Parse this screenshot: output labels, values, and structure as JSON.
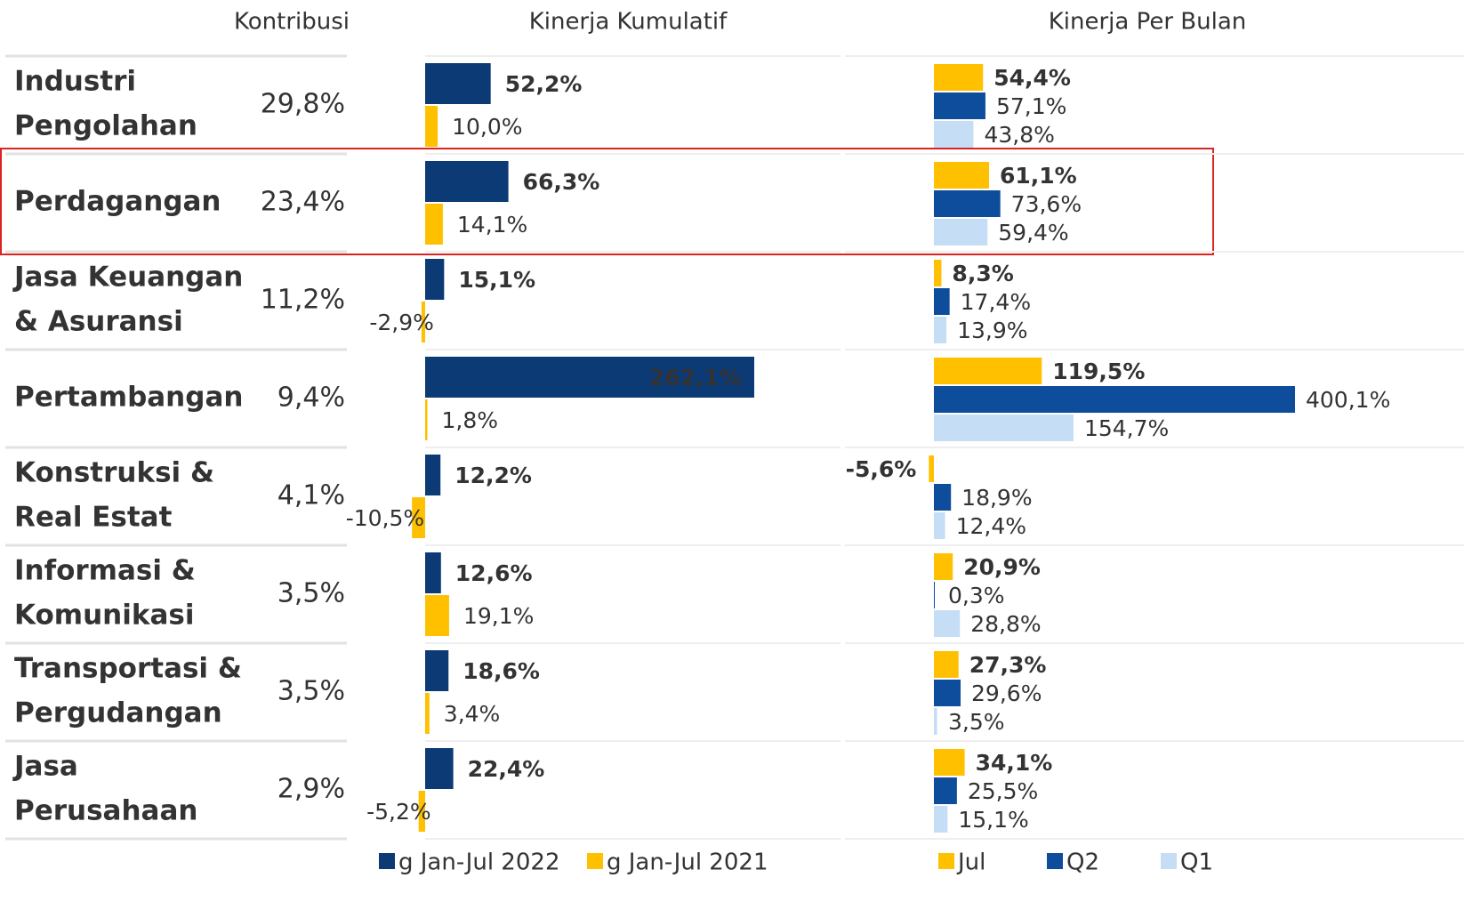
{
  "headers": [
    "Kontribusi",
    "Kinerja Kumulatif",
    "Kinerja Per Bulan"
  ],
  "sectors": [
    [
      "Industri",
      "Pengolahan"
    ],
    [
      "Perdagangan"
    ],
    [
      "Jasa Keuangan",
      "& Asuransi"
    ],
    [
      "Pertambangan"
    ],
    [
      "Konstruksi &",
      "Real Estat"
    ],
    [
      "Informasi &",
      "Komunikasi"
    ],
    [
      "Transportasi &",
      "Pergudangan"
    ],
    [
      "Jasa",
      "Perusahaan"
    ]
  ],
  "contribution": {
    "values": [
      29.8,
      23.4,
      11.2,
      9.4,
      4.1,
      3.5,
      3.5,
      2.9
    ],
    "value_labels": [
      "29,8%",
      "23,4%",
      "11,2%",
      "9,4%",
      "4,1%",
      "3,5%",
      "3,5%",
      "2,9%"
    ]
  },
  "cumulative": {
    "series": [
      {
        "name": "g Jan-Jul 2022",
        "color": "#0b3a75",
        "values": [
          52.2,
          66.3,
          15.1,
          262.1,
          12.2,
          12.6,
          18.6,
          22.4
        ],
        "value_labels": [
          "52,2%",
          "66,3%",
          "15,1%",
          "262,1%",
          "12,2%",
          "12,6%",
          "18,6%",
          "22,4%"
        ]
      },
      {
        "name": "g Jan-Jul 2021",
        "color": "#ffc000",
        "values": [
          10.0,
          14.1,
          -2.9,
          1.8,
          -10.5,
          19.1,
          3.4,
          -5.2
        ],
        "value_labels": [
          "10,0%",
          "14,1%",
          "-2,9%",
          "1,8%",
          "-10,5%",
          "19,1%",
          "3,4%",
          "-5,2%"
        ]
      }
    ]
  },
  "monthly": {
    "series": [
      {
        "name": "Jul",
        "color": "#ffc000",
        "values": [
          54.4,
          61.1,
          8.3,
          119.5,
          -5.6,
          20.9,
          27.3,
          34.1
        ],
        "value_labels": [
          "54,4%",
          "61,1%",
          "8,3%",
          "119,5%",
          "-5,6%",
          "20,9%",
          "27,3%",
          "34,1%"
        ]
      },
      {
        "name": "Q2",
        "color": "#0d4d9c",
        "values": [
          57.1,
          73.6,
          17.4,
          400.1,
          18.9,
          0.3,
          29.6,
          25.5
        ],
        "value_labels": [
          "57,1%",
          "73,6%",
          "17,4%",
          "400,1%",
          "18,9%",
          "0,3%",
          "29,6%",
          "25,5%"
        ]
      },
      {
        "name": "Q1",
        "color": "#c6ddf6",
        "values": [
          43.8,
          59.4,
          13.9,
          154.7,
          12.4,
          28.8,
          3.5,
          15.1
        ],
        "value_labels": [
          "43,8%",
          "59,4%",
          "13,9%",
          "154,7%",
          "12,4%",
          "28,8%",
          "3,5%",
          "15,1%"
        ]
      }
    ]
  }
}
